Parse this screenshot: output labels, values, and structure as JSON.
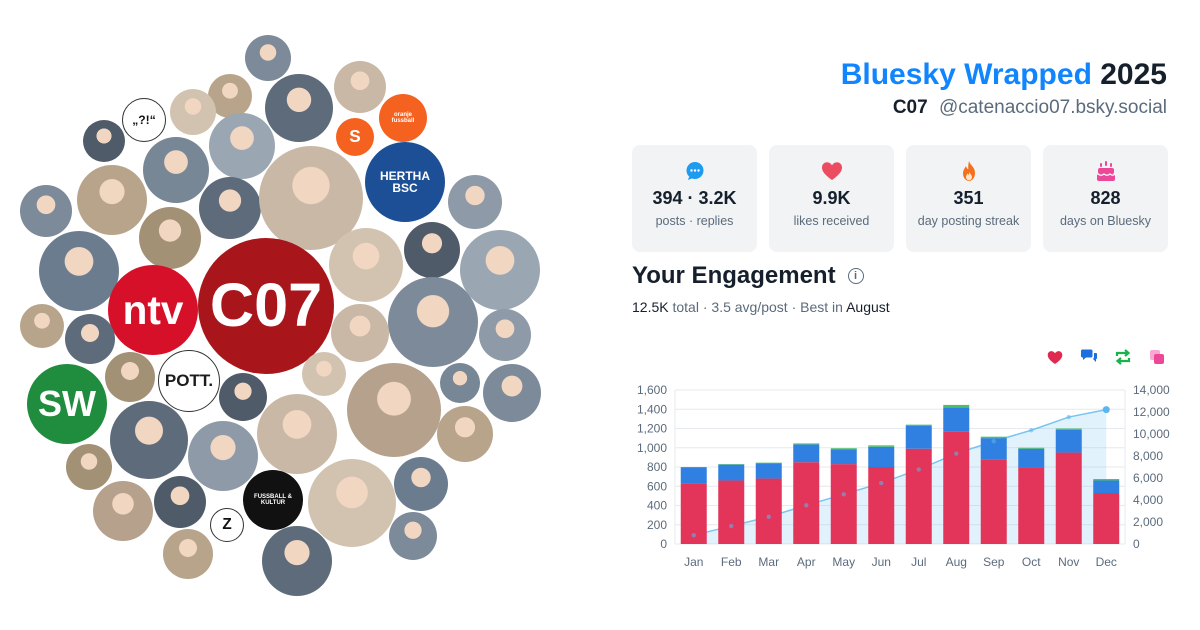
{
  "header": {
    "brand": "Bluesky Wrapped",
    "year": "2025",
    "display_name": "C07",
    "handle": "@catenaccio07.bsky.social"
  },
  "stats": [
    {
      "icon": "speech-bubble-icon",
      "value": "394 · 3.2K",
      "label": "posts · replies",
      "color": "#1d9bf0"
    },
    {
      "icon": "heart-icon",
      "value": "9.9K",
      "label": "likes received",
      "color": "#ec4c60"
    },
    {
      "icon": "flame-icon",
      "value": "351",
      "label": "day posting streak",
      "color": "#f4701e"
    },
    {
      "icon": "cake-icon",
      "value": "828",
      "label": "days on Bluesky",
      "color": "#ec4899"
    }
  ],
  "engagement": {
    "title": "Your Engagement",
    "total": "12.5K",
    "total_label": "total",
    "avg": "3.5 avg/post",
    "best_prefix": "Best in",
    "best_month": "August"
  },
  "legend": [
    {
      "icon": "heart-icon",
      "color": "#e0294f"
    },
    {
      "icon": "reply-icon",
      "color": "#1d6fe0"
    },
    {
      "icon": "repost-icon",
      "color": "#19b34b"
    },
    {
      "icon": "quote-icon",
      "color": "#ec4899"
    }
  ],
  "avatars": [
    {
      "label": "C07",
      "bg": "#a8161b",
      "fg": "#ffffff"
    },
    {
      "label": "ntv",
      "bg": "#d7102a",
      "fg": "#ffffff"
    },
    {
      "label": "SW",
      "bg": "#1f8c3e",
      "fg": "#ffffff"
    },
    {
      "label": "POTT.",
      "bg": "#ffffff",
      "fg": "#1c1c1c"
    },
    {
      "label": "oranje fussball",
      "bg": "#f5621f",
      "fg": "#ffffff"
    },
    {
      "label": "S",
      "bg": "#f5621f",
      "fg": "#ffffff"
    },
    {
      "label": "HERTHA BSC",
      "bg": "#1c4f96",
      "fg": "#ffffff"
    },
    {
      "label": "Z",
      "bg": "#ffffff",
      "fg": "#111111"
    },
    {
      "label": "FUSSBALL & KULTUR",
      "bg": "#111111",
      "fg": "#ffffff"
    },
    {
      "label": "„?!“",
      "bg": "#ffffff",
      "fg": "#111111"
    }
  ],
  "chart_data": {
    "type": "bar",
    "categories": [
      "Jan",
      "Feb",
      "Mar",
      "Apr",
      "May",
      "Jun",
      "Jul",
      "Aug",
      "Sep",
      "Oct",
      "Nov",
      "Dec"
    ],
    "series": [
      {
        "name": "likes",
        "color": "#e3355a",
        "values": [
          630,
          660,
          680,
          850,
          830,
          800,
          990,
          1165,
          880,
          790,
          950,
          530
        ]
      },
      {
        "name": "replies",
        "color": "#2f80e0",
        "values": [
          165,
          165,
          160,
          185,
          155,
          210,
          240,
          255,
          220,
          200,
          235,
          130
        ]
      },
      {
        "name": "reposts",
        "color": "#4cbf6a",
        "values": [
          5,
          5,
          5,
          10,
          10,
          15,
          10,
          25,
          15,
          10,
          15,
          15
        ]
      },
      {
        "name": "cumulative",
        "type": "area",
        "color": "#5ab6f0",
        "values": [
          800,
          1630,
          2475,
          3520,
          4515,
          5540,
          6780,
          8225,
          9340,
          10340,
          11540,
          12215
        ]
      }
    ],
    "y_left": {
      "min": 0,
      "max": 1600,
      "ticks": [
        "0",
        "200",
        "400",
        "600",
        "800",
        "1,000",
        "1,200",
        "1,400",
        "1,600"
      ]
    },
    "y_right": {
      "min": 0,
      "max": 14000,
      "ticks": [
        "0",
        "2,000",
        "4,000",
        "6,000",
        "8,000",
        "10,000",
        "12,000",
        "14,000"
      ]
    },
    "grid": true
  }
}
